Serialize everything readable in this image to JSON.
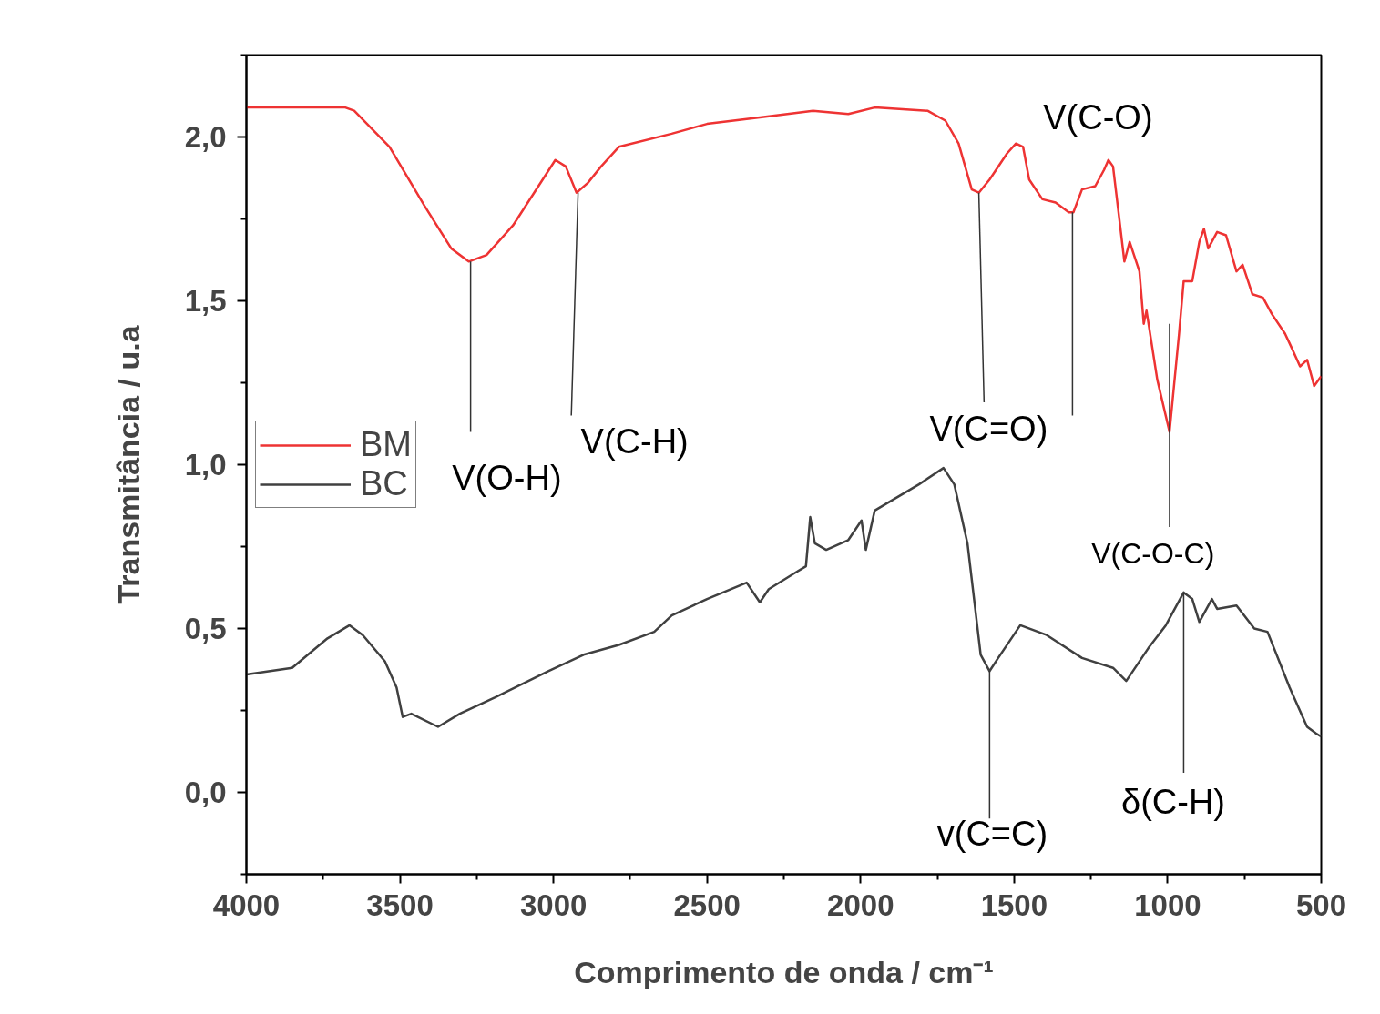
{
  "chart_data": {
    "type": "line",
    "xlabel": "Comprimento de onda / cm⁻¹",
    "ylabel": "Transmitância / u.a",
    "xlim": [
      4000,
      500
    ],
    "ylim": [
      -0.25,
      2.25
    ],
    "xticks": [
      4000,
      3500,
      3000,
      2500,
      2000,
      1500,
      1000,
      500
    ],
    "yticks": [
      {
        "value": 0,
        "label": "0,0"
      },
      {
        "value": 0.5,
        "label": "0,5"
      },
      {
        "value": 1,
        "label": "1,0"
      },
      {
        "value": 1.5,
        "label": "1,5"
      },
      {
        "value": 2,
        "label": "2,0"
      }
    ],
    "grid": false,
    "legend": "left",
    "marker": "none",
    "line_style": "solid",
    "series": [
      {
        "name": "BM",
        "color": "#ee3333",
        "x": [
          4000,
          3678,
          3649,
          3534,
          3420,
          3333,
          3276,
          3218,
          3132,
          2994,
          2960,
          2925,
          2888,
          2845,
          2787,
          2615,
          2500,
          2328,
          2155,
          2040,
          1954,
          1782,
          1724,
          1681,
          1638,
          1615,
          1580,
          1523,
          1494,
          1471,
          1451,
          1408,
          1365,
          1322,
          1307,
          1279,
          1236,
          1207,
          1193,
          1178,
          1155,
          1141,
          1124,
          1092,
          1078,
          1069,
          1034,
          994,
          963,
          948,
          920,
          897,
          882,
          868,
          839,
          810,
          776,
          756,
          724,
          690,
          661,
          618,
          598,
          569,
          546,
          523,
          500
        ],
        "values": [
          2.09,
          2.09,
          2.08,
          1.97,
          1.79,
          1.66,
          1.62,
          1.64,
          1.73,
          1.93,
          1.91,
          1.83,
          1.86,
          1.91,
          1.97,
          2.01,
          2.04,
          2.06,
          2.08,
          2.07,
          2.09,
          2.08,
          2.05,
          1.98,
          1.84,
          1.83,
          1.87,
          1.95,
          1.98,
          1.97,
          1.87,
          1.81,
          1.8,
          1.77,
          1.77,
          1.84,
          1.85,
          1.9,
          1.93,
          1.91,
          1.73,
          1.62,
          1.68,
          1.59,
          1.43,
          1.47,
          1.26,
          1.1,
          1.4,
          1.56,
          1.56,
          1.68,
          1.72,
          1.66,
          1.71,
          1.7,
          1.59,
          1.61,
          1.52,
          1.51,
          1.46,
          1.4,
          1.36,
          1.3,
          1.32,
          1.24,
          1.27
        ]
      },
      {
        "name": "BC",
        "color": "#404040",
        "x": [
          4000,
          3851,
          3736,
          3664,
          3621,
          3549,
          3511,
          3491,
          3463,
          3376,
          3305,
          3190,
          3017,
          2902,
          2787,
          2672,
          2615,
          2500,
          2371,
          2328,
          2299,
          2213,
          2178,
          2164,
          2149,
          2112,
          2040,
          1997,
          1983,
          1954,
          1810,
          1730,
          1695,
          1652,
          1609,
          1580,
          1552,
          1480,
          1394,
          1279,
          1178,
          1135,
          1063,
          1006,
          948,
          920,
          897,
          856,
          839,
          776,
          718,
          675,
          603,
          546,
          517,
          500
        ],
        "values": [
          0.36,
          0.38,
          0.47,
          0.51,
          0.48,
          0.4,
          0.32,
          0.23,
          0.24,
          0.2,
          0.24,
          0.29,
          0.37,
          0.42,
          0.45,
          0.49,
          0.54,
          0.59,
          0.64,
          0.58,
          0.62,
          0.67,
          0.69,
          0.84,
          0.76,
          0.74,
          0.77,
          0.83,
          0.74,
          0.86,
          0.94,
          0.99,
          0.94,
          0.76,
          0.42,
          0.37,
          0.41,
          0.51,
          0.48,
          0.41,
          0.38,
          0.34,
          0.44,
          0.51,
          0.61,
          0.59,
          0.52,
          0.59,
          0.56,
          0.57,
          0.5,
          0.49,
          0.32,
          0.2,
          0.18,
          0.17
        ]
      }
    ],
    "annotations": [
      {
        "text": "V(O-H)",
        "x": 3270,
        "y": 1.62
      },
      {
        "text": "V(C-H)",
        "x": 2920,
        "y": 1.83
      },
      {
        "text": "V(C=O)",
        "x": 1615,
        "y": 1.83
      },
      {
        "text": "V(C-O)",
        "x": 1310,
        "y": 1.77
      },
      {
        "text": "V(C-O-C)",
        "x": 994,
        "y": 1.1
      },
      {
        "text": "v(C=C)",
        "x": 1580,
        "y": 0.37
      },
      {
        "text": "δ(C-H)",
        "x": 948,
        "y": 0.61
      }
    ]
  }
}
